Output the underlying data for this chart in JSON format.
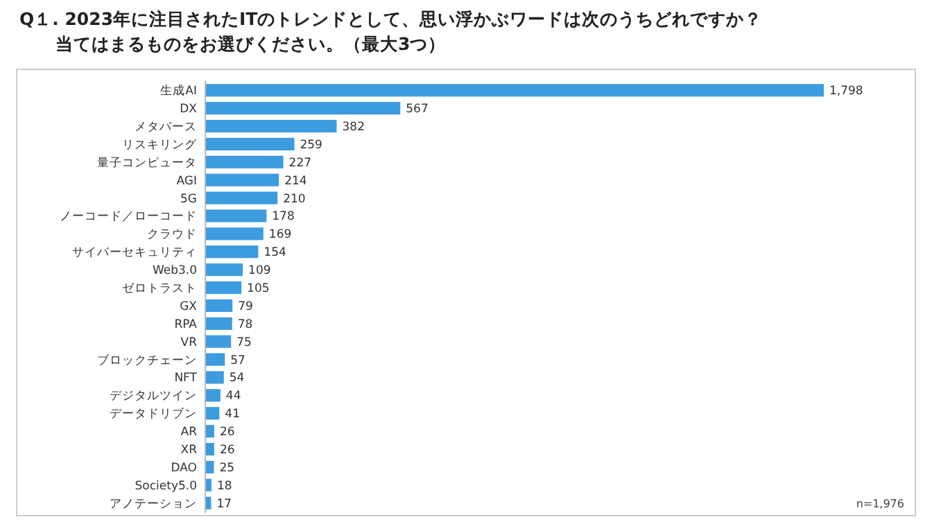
{
  "chart_data": {
    "type": "bar",
    "orientation": "horizontal",
    "title": "Q１. 2023年に注目されたITのトレンドとして、思い浮かぶワードは次のうちどれですか？",
    "subtitle": "当てはまるものをお選びください。（最大3つ）",
    "categories": [
      "生成AI",
      "DX",
      "メタバース",
      "リスキリング",
      "量子コンピュータ",
      "AGI",
      "5G",
      "ノーコード／ローコード",
      "クラウド",
      "サイバーセキュリティ",
      "Web3.0",
      "ゼロトラスト",
      "GX",
      "RPA",
      "VR",
      "ブロックチェーン",
      "NFT",
      "デジタルツイン",
      "データドリブン",
      "AR",
      "XR",
      "DAO",
      "Society5.0",
      "アノテーション"
    ],
    "values": [
      1798,
      567,
      382,
      259,
      227,
      214,
      210,
      178,
      169,
      154,
      109,
      105,
      79,
      78,
      75,
      57,
      54,
      44,
      41,
      26,
      26,
      25,
      18,
      17
    ],
    "value_labels": [
      "1,798",
      "567",
      "382",
      "259",
      "227",
      "214",
      "210",
      "178",
      "169",
      "154",
      "109",
      "105",
      "79",
      "78",
      "75",
      "57",
      "54",
      "44",
      "41",
      "26",
      "26",
      "25",
      "18",
      "17"
    ],
    "color": "#3d9be0",
    "annotations": [
      "n=1,976"
    ]
  }
}
